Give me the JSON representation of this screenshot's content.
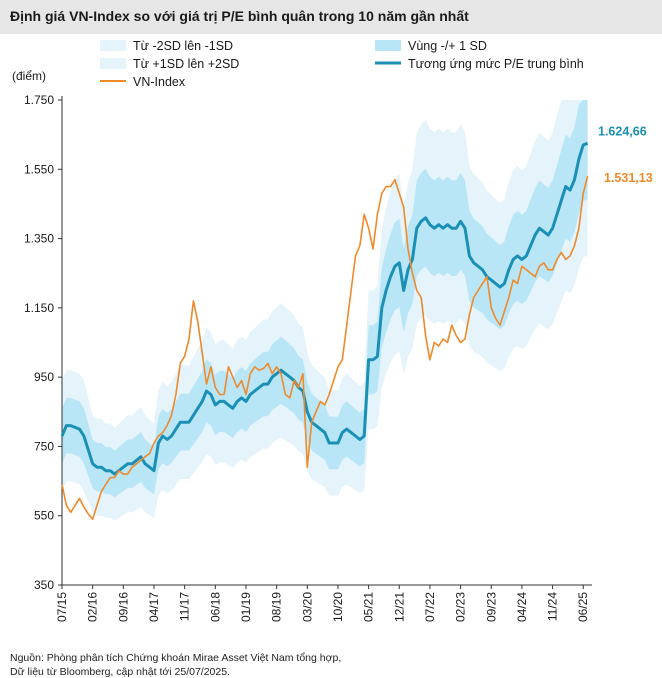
{
  "title": "Định giá VN-Index so với giá trị P/E bình quân trong 10 năm gần nhất",
  "source_line1": "Nguồn: Phòng phân tích Chứng khoán Mirae Asset Việt Nam tổng hợp,",
  "source_line2": "Dữ liệu từ Bloomberg, cập nhật tới 25/07/2025.",
  "colors": {
    "outer_band": "#e5f3fb",
    "inner_band": "#b9e6f7",
    "pe_line": "#1b8fb5",
    "vnindex_line": "#ef8a2a",
    "title_bg": "#e6e6e6"
  },
  "chart_data": {
    "type": "line",
    "title": "Định giá VN-Index so với giá trị P/E bình quân trong 10 năm gần nhất",
    "ylabel": "(điểm)",
    "ylim": [
      350,
      1750
    ],
    "yticks": [
      "1.750",
      "1.550",
      "1.350",
      "1.150",
      "950",
      "750",
      "550",
      "350"
    ],
    "ytick_values": [
      1750,
      1550,
      1350,
      1150,
      950,
      750,
      550,
      350
    ],
    "xlabels": [
      "07/15",
      "02/16",
      "09/16",
      "04/17",
      "11/17",
      "06/18",
      "01/19",
      "08/19",
      "03/20",
      "10/20",
      "05/21",
      "12/21",
      "07/22",
      "02/23",
      "09/23",
      "04/24",
      "11/24",
      "06/25"
    ],
    "xlabel_months": [
      0,
      7,
      14,
      21,
      28,
      35,
      42,
      49,
      56,
      63,
      70,
      77,
      84,
      91,
      98,
      105,
      112,
      119
    ],
    "xlim_months": [
      0,
      121
    ],
    "legend": {
      "outer": "Từ -2SD lên -1SD",
      "outer_upper": "Từ +1SD lên +2SD",
      "inner": "Vùng -/+ 1 SD",
      "pe_line": "Tương ứng mức P/E trung bình",
      "vnindex": "VN-Index"
    },
    "end_labels": {
      "pe_line": "1.624,66",
      "vnindex": "1.531,13"
    },
    "series": [
      {
        "name": "VN-Index",
        "x": [
          0,
          1,
          2,
          3,
          4,
          5,
          6,
          7,
          8,
          9,
          10,
          11,
          12,
          13,
          14,
          15,
          16,
          17,
          18,
          19,
          20,
          21,
          22,
          23,
          24,
          25,
          26,
          27,
          28,
          29,
          30,
          31,
          32,
          33,
          34,
          35,
          36,
          37,
          38,
          39,
          40,
          41,
          42,
          43,
          44,
          45,
          46,
          47,
          48,
          49,
          50,
          51,
          52,
          53,
          54,
          55,
          56,
          57,
          58,
          59,
          60,
          61,
          62,
          63,
          64,
          65,
          66,
          67,
          68,
          69,
          70,
          71,
          72,
          73,
          74,
          75,
          76,
          77,
          78,
          79,
          80,
          81,
          82,
          83,
          84,
          85,
          86,
          87,
          88,
          89,
          90,
          91,
          92,
          93,
          94,
          95,
          96,
          97,
          98,
          99,
          100,
          101,
          102,
          103,
          104,
          105,
          106,
          107,
          108,
          109,
          110,
          111,
          112,
          113,
          114,
          115,
          116,
          117,
          118,
          119,
          120
        ],
        "values": [
          640,
          580,
          560,
          580,
          600,
          575,
          555,
          540,
          580,
          620,
          640,
          660,
          660,
          680,
          670,
          670,
          690,
          700,
          710,
          720,
          730,
          760,
          780,
          790,
          810,
          840,
          900,
          990,
          1010,
          1060,
          1170,
          1110,
          1020,
          930,
          980,
          920,
          900,
          900,
          980,
          950,
          920,
          940,
          900,
          960,
          980,
          970,
          975,
          990,
          960,
          980,
          960,
          900,
          890,
          940,
          920,
          960,
          690,
          820,
          850,
          880,
          870,
          900,
          940,
          980,
          1000,
          1100,
          1200,
          1300,
          1330,
          1420,
          1380,
          1320,
          1420,
          1480,
          1500,
          1500,
          1520,
          1480,
          1440,
          1320,
          1250,
          1200,
          1180,
          1070,
          1000,
          1050,
          1040,
          1060,
          1050,
          1100,
          1070,
          1050,
          1060,
          1130,
          1180,
          1200,
          1220,
          1240,
          1150,
          1120,
          1100,
          1140,
          1180,
          1230,
          1220,
          1270,
          1260,
          1250,
          1240,
          1270,
          1280,
          1260,
          1260,
          1290,
          1310,
          1290,
          1300,
          1330,
          1380,
          1480,
          1530
        ]
      },
      {
        "name": "Tương ứng mức P/E trung bình",
        "x": [
          0,
          1,
          2,
          3,
          4,
          5,
          6,
          7,
          8,
          9,
          10,
          11,
          12,
          13,
          14,
          15,
          16,
          17,
          18,
          19,
          20,
          21,
          22,
          23,
          24,
          25,
          26,
          27,
          28,
          29,
          30,
          31,
          32,
          33,
          34,
          35,
          36,
          37,
          38,
          39,
          40,
          41,
          42,
          43,
          44,
          45,
          46,
          47,
          48,
          49,
          50,
          51,
          52,
          53,
          54,
          55,
          56,
          57,
          58,
          59,
          60,
          61,
          62,
          63,
          64,
          65,
          66,
          67,
          68,
          69,
          70,
          71,
          72,
          73,
          74,
          75,
          76,
          77,
          78,
          79,
          80,
          81,
          82,
          83,
          84,
          85,
          86,
          87,
          88,
          89,
          90,
          91,
          92,
          93,
          94,
          95,
          96,
          97,
          98,
          99,
          100,
          101,
          102,
          103,
          104,
          105,
          106,
          107,
          108,
          109,
          110,
          111,
          112,
          113,
          114,
          115,
          116,
          117,
          118,
          119,
          120
        ],
        "values": [
          780,
          810,
          810,
          805,
          800,
          780,
          740,
          700,
          690,
          690,
          680,
          680,
          670,
          680,
          690,
          700,
          700,
          710,
          720,
          700,
          690,
          680,
          760,
          780,
          770,
          780,
          800,
          820,
          820,
          820,
          840,
          860,
          880,
          910,
          900,
          870,
          880,
          880,
          870,
          860,
          880,
          890,
          880,
          900,
          910,
          920,
          930,
          930,
          950,
          960,
          970,
          960,
          950,
          940,
          920,
          910,
          850,
          820,
          810,
          800,
          790,
          760,
          760,
          760,
          790,
          800,
          790,
          780,
          770,
          780,
          1000,
          1000,
          1010,
          1150,
          1200,
          1240,
          1270,
          1280,
          1200,
          1260,
          1290,
          1380,
          1400,
          1410,
          1390,
          1380,
          1390,
          1380,
          1390,
          1380,
          1380,
          1400,
          1380,
          1300,
          1280,
          1270,
          1260,
          1240,
          1230,
          1220,
          1210,
          1220,
          1260,
          1290,
          1300,
          1290,
          1300,
          1330,
          1360,
          1380,
          1370,
          1360,
          1380,
          1420,
          1460,
          1500,
          1490,
          1520,
          1580,
          1620,
          1625
        ]
      },
      {
        "name": "Vùng -/+ 1 SD (lower)",
        "values": [
          700,
          730,
          730,
          725,
          720,
          700,
          665,
          630,
          620,
          620,
          612,
          612,
          603,
          612,
          621,
          630,
          630,
          639,
          648,
          630,
          621,
          612,
          684,
          702,
          693,
          702,
          720,
          738,
          738,
          738,
          756,
          774,
          792,
          819,
          810,
          783,
          792,
          792,
          783,
          774,
          792,
          801,
          792,
          810,
          819,
          828,
          837,
          837,
          855,
          864,
          873,
          864,
          855,
          846,
          828,
          819,
          765,
          738,
          729,
          720,
          711,
          684,
          684,
          684,
          711,
          720,
          711,
          702,
          693,
          702,
          900,
          900,
          909,
          1035,
          1080,
          1116,
          1143,
          1152,
          1080,
          1134,
          1161,
          1242,
          1260,
          1269,
          1251,
          1242,
          1251,
          1242,
          1251,
          1242,
          1242,
          1260,
          1242,
          1170,
          1152,
          1143,
          1134,
          1116,
          1107,
          1098,
          1089,
          1098,
          1134,
          1161,
          1170,
          1161,
          1170,
          1197,
          1224,
          1242,
          1233,
          1224,
          1242,
          1278,
          1314,
          1350,
          1341,
          1368,
          1422,
          1458,
          1463
        ]
      },
      {
        "name": "Vùng -/+ 1 SD (upper)",
        "values": [
          860,
          890,
          890,
          885,
          880,
          860,
          815,
          770,
          760,
          760,
          748,
          748,
          737,
          748,
          759,
          770,
          770,
          781,
          792,
          770,
          759,
          748,
          836,
          858,
          847,
          858,
          880,
          902,
          902,
          902,
          924,
          946,
          968,
          1001,
          990,
          957,
          968,
          968,
          957,
          946,
          968,
          979,
          968,
          990,
          1001,
          1012,
          1023,
          1023,
          1045,
          1056,
          1067,
          1056,
          1045,
          1034,
          1012,
          1001,
          935,
          902,
          891,
          880,
          869,
          836,
          836,
          836,
          869,
          880,
          869,
          858,
          847,
          858,
          1100,
          1100,
          1111,
          1265,
          1320,
          1364,
          1397,
          1408,
          1320,
          1386,
          1419,
          1518,
          1540,
          1551,
          1529,
          1518,
          1529,
          1518,
          1529,
          1518,
          1518,
          1540,
          1518,
          1430,
          1408,
          1397,
          1386,
          1364,
          1353,
          1342,
          1331,
          1342,
          1386,
          1419,
          1430,
          1419,
          1430,
          1463,
          1496,
          1518,
          1507,
          1496,
          1518,
          1562,
          1606,
          1650,
          1639,
          1672,
          1738,
          1750,
          1750
        ]
      },
      {
        "name": "Từ -2SD lên -1SD (lower)",
        "values": [
          620,
          650,
          650,
          645,
          640,
          620,
          590,
          560,
          550,
          550,
          544,
          544,
          536,
          544,
          552,
          560,
          560,
          568,
          576,
          560,
          552,
          544,
          608,
          624,
          616,
          624,
          640,
          656,
          656,
          656,
          672,
          688,
          704,
          728,
          720,
          696,
          704,
          704,
          696,
          688,
          704,
          712,
          704,
          720,
          728,
          736,
          744,
          744,
          760,
          768,
          776,
          768,
          760,
          752,
          736,
          728,
          680,
          656,
          648,
          640,
          632,
          608,
          608,
          608,
          632,
          640,
          632,
          624,
          616,
          624,
          800,
          800,
          808,
          920,
          960,
          992,
          1016,
          1024,
          960,
          1008,
          1032,
          1104,
          1120,
          1128,
          1112,
          1104,
          1112,
          1104,
          1112,
          1104,
          1104,
          1120,
          1104,
          1040,
          1024,
          1016,
          1008,
          992,
          984,
          976,
          968,
          976,
          1008,
          1032,
          1040,
          1032,
          1040,
          1064,
          1088,
          1104,
          1096,
          1088,
          1104,
          1136,
          1168,
          1200,
          1192,
          1216,
          1264,
          1296,
          1300
        ]
      },
      {
        "name": "Từ +1SD lên +2SD (upper)",
        "values": [
          940,
          970,
          970,
          965,
          960,
          940,
          890,
          840,
          830,
          830,
          816,
          816,
          804,
          816,
          828,
          840,
          840,
          852,
          864,
          840,
          828,
          816,
          912,
          936,
          924,
          936,
          960,
          984,
          984,
          984,
          1008,
          1032,
          1056,
          1092,
          1080,
          1044,
          1056,
          1056,
          1044,
          1032,
          1056,
          1068,
          1056,
          1080,
          1092,
          1104,
          1116,
          1116,
          1140,
          1152,
          1164,
          1152,
          1140,
          1128,
          1104,
          1092,
          1020,
          984,
          972,
          960,
          948,
          912,
          912,
          912,
          948,
          960,
          948,
          936,
          924,
          936,
          1200,
          1200,
          1212,
          1380,
          1440,
          1488,
          1524,
          1536,
          1440,
          1512,
          1548,
          1656,
          1680,
          1692,
          1668,
          1656,
          1668,
          1656,
          1668,
          1656,
          1656,
          1680,
          1656,
          1560,
          1536,
          1524,
          1512,
          1488,
          1476,
          1464,
          1452,
          1464,
          1512,
          1548,
          1560,
          1548,
          1560,
          1596,
          1632,
          1656,
          1644,
          1632,
          1656,
          1704,
          1750,
          1750,
          1750,
          1750,
          1750,
          1750,
          1750
        ]
      }
    ]
  }
}
